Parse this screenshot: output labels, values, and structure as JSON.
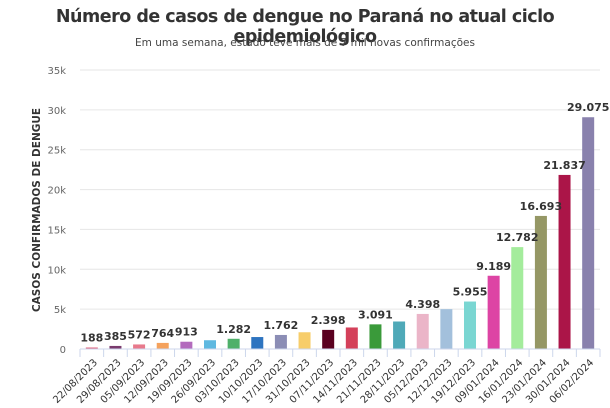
{
  "chart_data": {
    "type": "bar",
    "title": "Número de casos de dengue no Paraná no atual ciclo epidemiológico",
    "subtitle": "Em uma semana, estado teve mais de 7 mil novas confirmações",
    "xlabel": "",
    "ylabel": "CASOS CONFIRMADOS DE DENGUE",
    "ylim": [
      0,
      35000
    ],
    "yticks": [
      0,
      5000,
      10000,
      15000,
      20000,
      25000,
      30000,
      35000
    ],
    "ytick_labels": [
      "0",
      "5k",
      "10k",
      "15k",
      "20k",
      "25k",
      "30k",
      "35k"
    ],
    "grid": true,
    "legend": "none",
    "categories": [
      "22/08/2023",
      "29/08/2023",
      "05/09/2023",
      "12/09/2023",
      "19/09/2023",
      "26/09/2023",
      "03/10/2023",
      "10/10/2023",
      "17/10/2023",
      "31/10/2023",
      "07/11/2023",
      "14/11/2023",
      "21/11/2023",
      "28/11/2023",
      "05/12/2023",
      "12/12/2023",
      "19/12/2023",
      "09/01/2024",
      "16/01/2024",
      "23/01/2024",
      "30/01/2024",
      "06/02/2024"
    ],
    "values": [
      188,
      385,
      572,
      764,
      913,
      1100,
      1282,
      1500,
      1762,
      2100,
      2398,
      2700,
      3091,
      3450,
      4398,
      5000,
      5955,
      9189,
      12782,
      16693,
      21837,
      29075
    ],
    "data_labels": [
      "188",
      "385",
      "572",
      "764",
      "913",
      "",
      "1.282",
      "",
      "1.762",
      "",
      "2.398",
      "",
      "3.091",
      "",
      "4.398",
      "",
      "5.955",
      "9.189",
      "12.782",
      "16.693",
      "21.837",
      "29.075"
    ],
    "colors": [
      "#e0607e",
      "#7a3b6e",
      "#e8798c",
      "#f5a25d",
      "#b36bbd",
      "#5fb8e0",
      "#4fb06a",
      "#2e74c0",
      "#8b8db5",
      "#f7cd6a",
      "#5a0020",
      "#d4405a",
      "#3a9a3a",
      "#4fa9b8",
      "#ebb5c8",
      "#a3c0dc",
      "#7ad6d2",
      "#dd44a4",
      "#a4ec9c",
      "#959765",
      "#ab1548",
      "#8981ad"
    ]
  }
}
